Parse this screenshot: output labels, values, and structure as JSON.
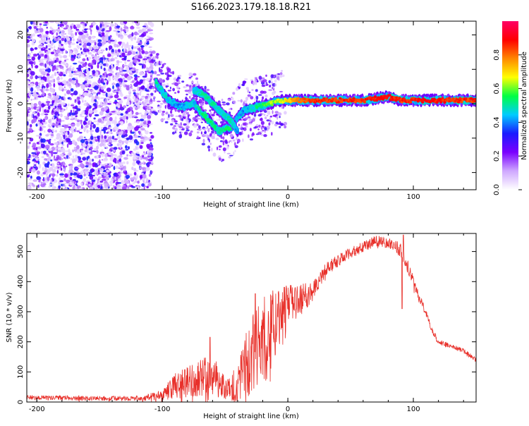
{
  "title": "S166.2023.179.18.18.R21",
  "chart_data": [
    {
      "type": "heatmap",
      "xlabel": "Height of straight line (km)",
      "ylabel": "Frequency (Hz)",
      "xlim": [
        -208,
        150
      ],
      "ylim": [
        -25,
        24
      ],
      "xticks": [
        -200,
        -100,
        0,
        100
      ],
      "yticks": [
        -20,
        -10,
        0,
        10,
        20
      ],
      "grid": false,
      "colorbar": {
        "label": "Normalized spectral amplitude",
        "range": [
          0,
          1
        ],
        "ticks": [
          0.0,
          0.2,
          0.4,
          0.6,
          0.8
        ],
        "colors": [
          "#ffffff",
          "#cfa8ff",
          "#7a00ff",
          "#1a1aff",
          "#00ccff",
          "#00ff44",
          "#ffff00",
          "#ff8800",
          "#ff0000",
          "#ff0066"
        ]
      },
      "ridge": {
        "x": [
          -105,
          -95,
          -85,
          -75,
          -65,
          -55,
          -45,
          -40,
          -35,
          -25,
          -15,
          -5,
          0,
          10,
          20,
          40,
          60,
          80,
          90,
          110,
          130,
          150
        ],
        "y": [
          6,
          1,
          -1,
          0,
          -4,
          -8,
          -7,
          -4,
          -2,
          -1,
          0,
          1,
          1,
          1,
          1,
          1,
          1,
          2,
          1,
          1,
          1,
          1
        ],
        "amp": [
          0.5,
          0.45,
          0.4,
          0.45,
          0.55,
          0.5,
          0.55,
          0.45,
          0.4,
          0.5,
          0.6,
          0.65,
          0.7,
          0.8,
          0.85,
          0.85,
          0.85,
          0.9,
          0.85,
          0.9,
          0.85,
          0.85
        ]
      },
      "secondary_ridge": {
        "x": [
          -75,
          -68,
          -60,
          -52,
          -45,
          -40
        ],
        "y": [
          4,
          3,
          0,
          -3,
          -5,
          -8
        ],
        "amp": [
          0.45,
          0.5,
          0.5,
          0.45,
          0.5,
          0.4
        ]
      },
      "noise_region": {
        "x_range": [
          -208,
          -108
        ],
        "y_range": [
          -25,
          24
        ],
        "amp": [
          0.05,
          0.35
        ]
      }
    },
    {
      "type": "line",
      "xlabel": "Height of straight line (km)",
      "ylabel": "SNR (10 * v/v)",
      "xlim": [
        -208,
        150
      ],
      "ylim": [
        0,
        560
      ],
      "xticks": [
        -200,
        -100,
        0,
        100
      ],
      "yticks": [
        0,
        100,
        200,
        300,
        400,
        500
      ],
      "grid": false,
      "color": "#e8302a",
      "envelope": {
        "x": [
          -208,
          -150,
          -115,
          -100,
          -90,
          -80,
          -70,
          -60,
          -55,
          -50,
          -40,
          -35,
          -30,
          -25,
          -20,
          -15,
          -10,
          -5,
          0,
          10,
          20,
          30,
          40,
          50,
          60,
          70,
          80,
          85,
          90,
          95,
          100,
          105,
          110,
          115,
          120,
          130,
          140,
          150
        ],
        "y": [
          15,
          12,
          12,
          25,
          50,
          70,
          80,
          95,
          70,
          45,
          60,
          120,
          150,
          170,
          200,
          230,
          270,
          300,
          320,
          340,
          370,
          440,
          470,
          495,
          515,
          535,
          530,
          520,
          505,
          455,
          400,
          345,
          295,
          240,
          200,
          185,
          170,
          140
        ],
        "amp": [
          8,
          8,
          8,
          20,
          45,
          55,
          60,
          70,
          50,
          40,
          60,
          110,
          130,
          140,
          150,
          140,
          120,
          90,
          70,
          50,
          35,
          25,
          20,
          18,
          18,
          18,
          18,
          20,
          25,
          22,
          18,
          15,
          12,
          10,
          10,
          8,
          8,
          8
        ]
      },
      "spikes": [
        {
          "x": 92,
          "y": 555
        },
        {
          "x": 91,
          "y": 310
        },
        {
          "x": -62,
          "y": 215
        },
        {
          "x": -26,
          "y": 360
        }
      ]
    }
  ]
}
